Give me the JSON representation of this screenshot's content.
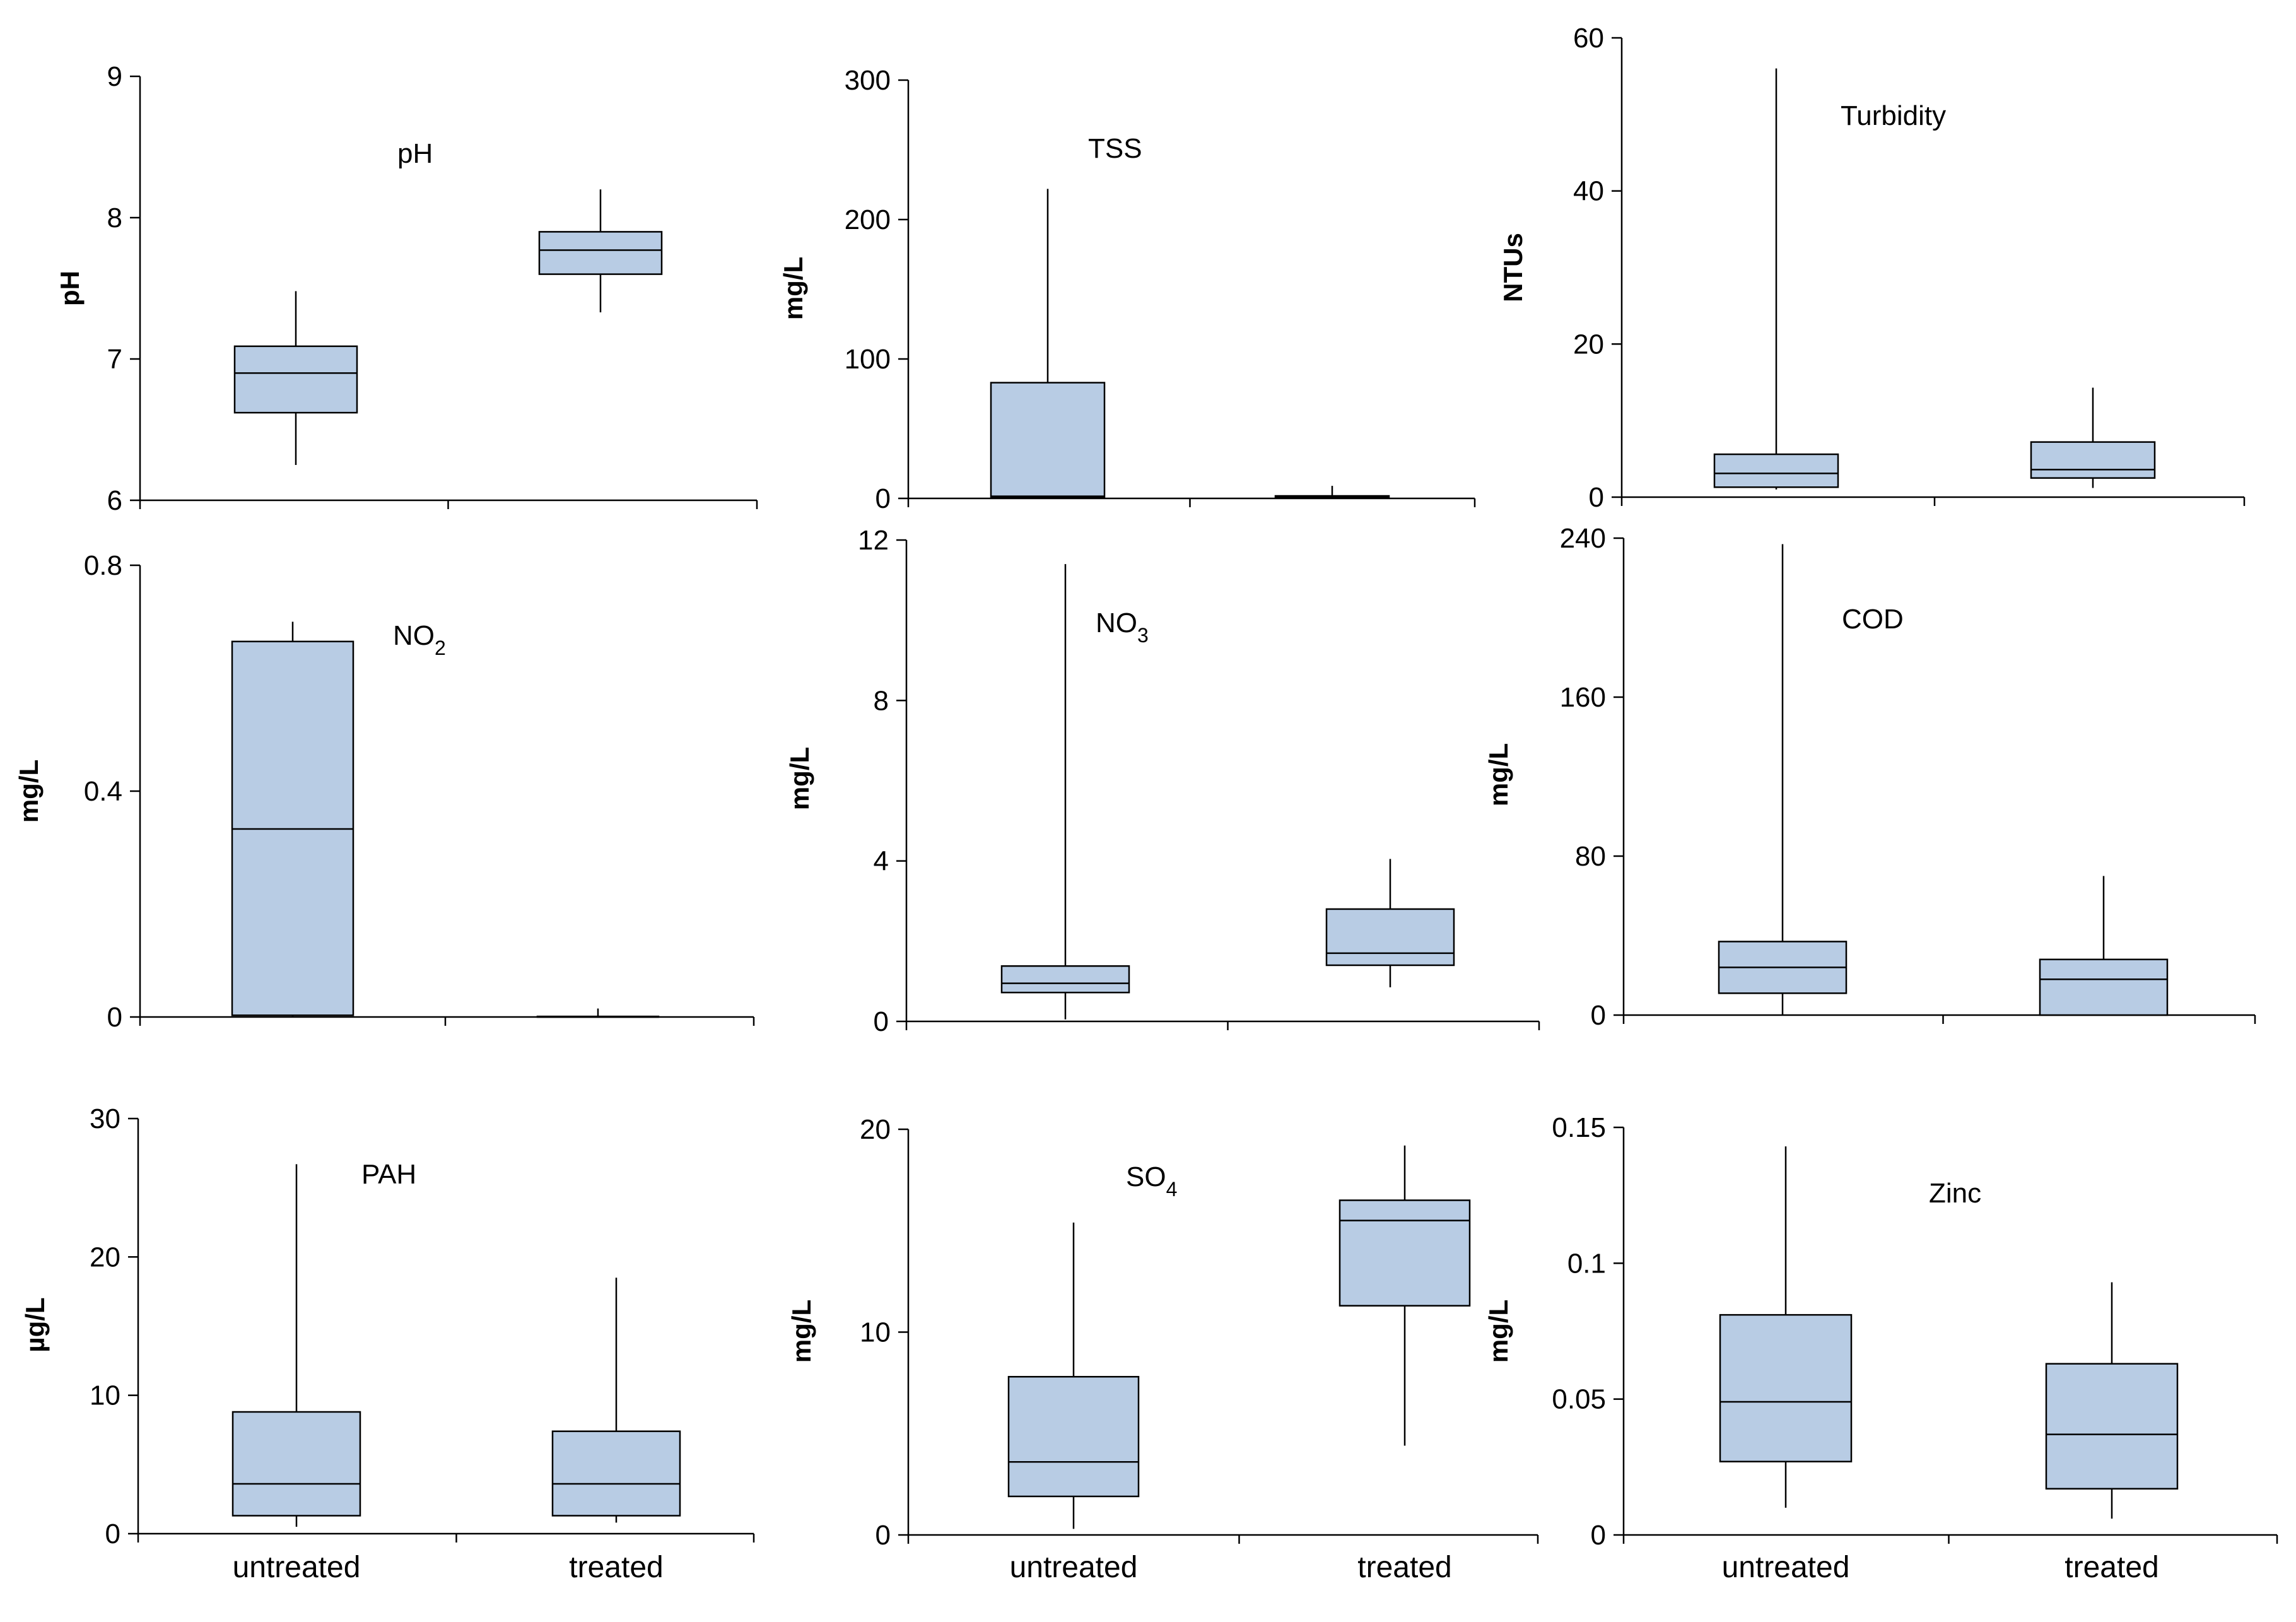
{
  "chart_data": [
    {
      "type": "box",
      "title": "pH",
      "ylabel": "pH",
      "ylim": [
        6,
        9
      ],
      "yticks": [
        6,
        7,
        8,
        9
      ],
      "categories": [
        "untreated",
        "treated"
      ],
      "boxes": [
        {
          "min": 6.25,
          "q1": 6.62,
          "median": 6.9,
          "q3": 7.09,
          "max": 7.48
        },
        {
          "min": 7.33,
          "q1": 7.6,
          "median": 7.77,
          "q3": 7.9,
          "max": 8.2
        }
      ]
    },
    {
      "type": "box",
      "title": "TSS",
      "ylabel": "mg/L",
      "ylim": [
        0,
        300
      ],
      "yticks": [
        0,
        100,
        200,
        300
      ],
      "categories": [
        "untreated",
        "treated"
      ],
      "boxes": [
        {
          "min": 0,
          "q1": 0.5,
          "median": 1.5,
          "q3": 83,
          "max": 222
        },
        {
          "min": 0,
          "q1": 0.5,
          "median": 1,
          "q3": 1.8,
          "max": 9
        }
      ]
    },
    {
      "type": "box",
      "title": "Turbidity",
      "ylabel": "NTUs",
      "ylim": [
        0,
        60
      ],
      "yticks": [
        0,
        20,
        40,
        60
      ],
      "categories": [
        "untreated",
        "treated"
      ],
      "boxes": [
        {
          "min": 1,
          "q1": 1.3,
          "median": 3.1,
          "q3": 5.6,
          "max": 56
        },
        {
          "min": 1.2,
          "q1": 2.5,
          "median": 3.6,
          "q3": 7.2,
          "max": 14.3
        }
      ]
    },
    {
      "type": "box",
      "title": "NO",
      "title_sub": "2",
      "ylabel": "mg/L",
      "ylim": [
        0,
        0.8
      ],
      "yticks": [
        0,
        0.4,
        0.8
      ],
      "categories": [
        "untreated",
        "treated"
      ],
      "boxes": [
        {
          "min": 0,
          "q1": 0.003,
          "median": 0.333,
          "q3": 0.665,
          "max": 0.7
        },
        {
          "min": 0,
          "q1": 0,
          "median": 0,
          "q3": 0.001,
          "max": 0.015
        }
      ]
    },
    {
      "type": "box",
      "title": "NO",
      "title_sub": "3",
      "ylabel": "mg/L",
      "ylim": [
        0,
        12
      ],
      "yticks": [
        0,
        4,
        8,
        12
      ],
      "categories": [
        "untreated",
        "treated"
      ],
      "boxes": [
        {
          "min": 0.05,
          "q1": 0.72,
          "median": 0.95,
          "q3": 1.38,
          "max": 11.4
        },
        {
          "min": 0.85,
          "q1": 1.4,
          "median": 1.7,
          "q3": 2.8,
          "max": 4.05
        }
      ]
    },
    {
      "type": "box",
      "title": "COD",
      "ylabel": "mg/L",
      "ylim": [
        0,
        240
      ],
      "yticks": [
        0,
        80,
        160,
        240
      ],
      "categories": [
        "untreated",
        "treated"
      ],
      "boxes": [
        {
          "min": 0,
          "q1": 11,
          "median": 24,
          "q3": 37,
          "max": 237
        },
        {
          "min": 0,
          "q1": 0,
          "median": 18,
          "q3": 28,
          "max": 70
        }
      ]
    },
    {
      "type": "box",
      "title": "PAH",
      "ylabel": "µg/L",
      "ylim": [
        0,
        30
      ],
      "yticks": [
        0,
        10,
        20,
        30
      ],
      "categories": [
        "untreated",
        "treated"
      ],
      "boxes": [
        {
          "min": 0.5,
          "q1": 1.3,
          "median": 3.6,
          "q3": 8.8,
          "max": 26.7
        },
        {
          "min": 0.8,
          "q1": 1.3,
          "median": 3.6,
          "q3": 7.4,
          "max": 18.5
        }
      ]
    },
    {
      "type": "box",
      "title": "SO",
      "title_sub": "4",
      "ylabel": "mg/L",
      "ylim": [
        0,
        20
      ],
      "yticks": [
        0,
        10,
        20
      ],
      "categories": [
        "untreated",
        "treated"
      ],
      "boxes": [
        {
          "min": 0.3,
          "q1": 1.9,
          "median": 3.6,
          "q3": 7.8,
          "max": 15.4
        },
        {
          "min": 4.4,
          "q1": 11.3,
          "median": 15.5,
          "q3": 16.5,
          "max": 19.2
        }
      ]
    },
    {
      "type": "box",
      "title": "Zinc",
      "ylabel": "mg/L",
      "ylim": [
        0,
        0.15
      ],
      "yticks": [
        0,
        0.05,
        0.1,
        0.15
      ],
      "categories": [
        "untreated",
        "treated"
      ],
      "boxes": [
        {
          "min": 0.01,
          "q1": 0.027,
          "median": 0.049,
          "q3": 0.081,
          "max": 0.143
        },
        {
          "min": 0.006,
          "q1": 0.017,
          "median": 0.037,
          "q3": 0.063,
          "max": 0.093
        }
      ]
    }
  ]
}
